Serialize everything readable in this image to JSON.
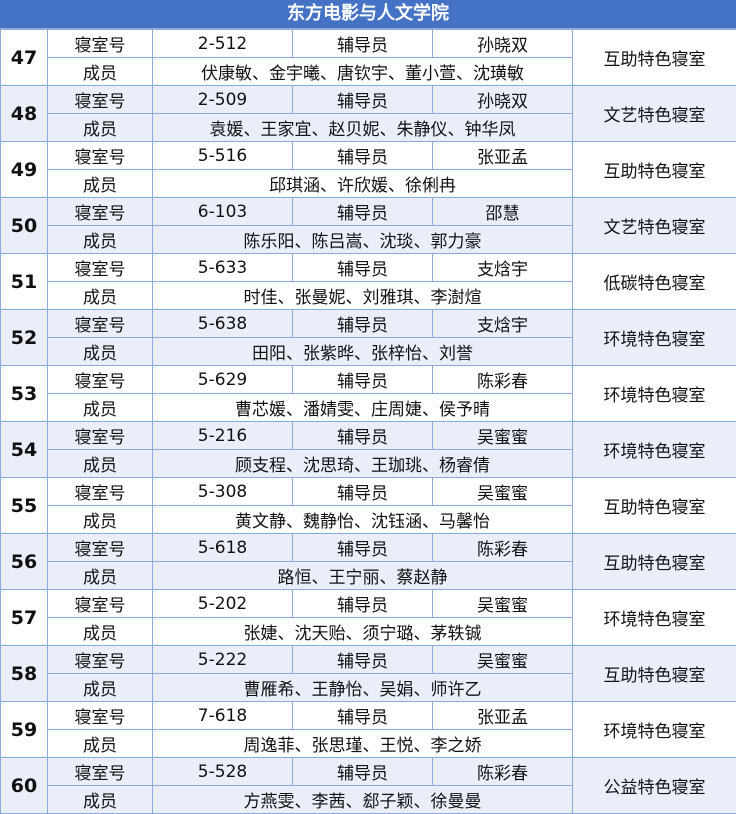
{
  "title": "东方电影与人文学院",
  "labels": {
    "room": "寝室号",
    "counselor": "辅导员",
    "members": "成员"
  },
  "colors": {
    "header": "#4472c4",
    "alt_row": "#e9eef9",
    "border": "#8eaadb"
  },
  "rows": [
    {
      "no": "47",
      "room": "2-512",
      "counselor": "孙晓双",
      "members": "伏康敏、金宇曦、唐钦宇、董小萱、沈璜敏",
      "category": "互助特色寝室"
    },
    {
      "no": "48",
      "room": "2-509",
      "counselor": "孙晓双",
      "members": "袁媛、王家宜、赵贝妮、朱静仪、钟华凤",
      "category": "文艺特色寝室"
    },
    {
      "no": "49",
      "room": "5-516",
      "counselor": "张亚孟",
      "members": "邱琪涵、许欣媛、徐俐冉",
      "category": "互助特色寝室"
    },
    {
      "no": "50",
      "room": "6-103",
      "counselor": "邵慧",
      "members": "陈乐阳、陈吕嵩、沈琰、郭力豪",
      "category": "文艺特色寝室"
    },
    {
      "no": "51",
      "room": "5-633",
      "counselor": "支焓宇",
      "members": "时佳、张曼妮、刘雅琪、李澍煊",
      "category": "低碳特色寝室"
    },
    {
      "no": "52",
      "room": "5-638",
      "counselor": "支焓宇",
      "members": "田阳、张紫晔、张梓怡、刘誉",
      "category": "环境特色寝室"
    },
    {
      "no": "53",
      "room": "5-629",
      "counselor": "陈彩春",
      "members": "曹芯媛、潘婧雯、庄周婕、侯予晴",
      "category": "环境特色寝室"
    },
    {
      "no": "54",
      "room": "5-216",
      "counselor": "吴蜜蜜",
      "members": "顾支程、沈思琦、王珈珧、杨睿倩",
      "category": "环境特色寝室"
    },
    {
      "no": "55",
      "room": "5-308",
      "counselor": "吴蜜蜜",
      "members": "黄文静、魏静怡、沈钰涵、马馨怡",
      "category": "互助特色寝室"
    },
    {
      "no": "56",
      "room": "5-618",
      "counselor": "陈彩春",
      "members": "路恒、王宁丽、蔡赵静",
      "category": "互助特色寝室"
    },
    {
      "no": "57",
      "room": "5-202",
      "counselor": "吴蜜蜜",
      "members": "张婕、沈天贻、须宁璐、茅轶铖",
      "category": "环境特色寝室"
    },
    {
      "no": "58",
      "room": "5-222",
      "counselor": "吴蜜蜜",
      "members": "曹雁希、王静怡、吴娟、师许乙",
      "category": "互助特色寝室"
    },
    {
      "no": "59",
      "room": "7-618",
      "counselor": "张亚孟",
      "members": "周逸菲、张思瑾、王悦、李之娇",
      "category": "环境特色寝室"
    },
    {
      "no": "60",
      "room": "5-528",
      "counselor": "陈彩春",
      "members": "方燕雯、李茜、郄子颖、徐曼曼",
      "category": "公益特色寝室"
    }
  ]
}
